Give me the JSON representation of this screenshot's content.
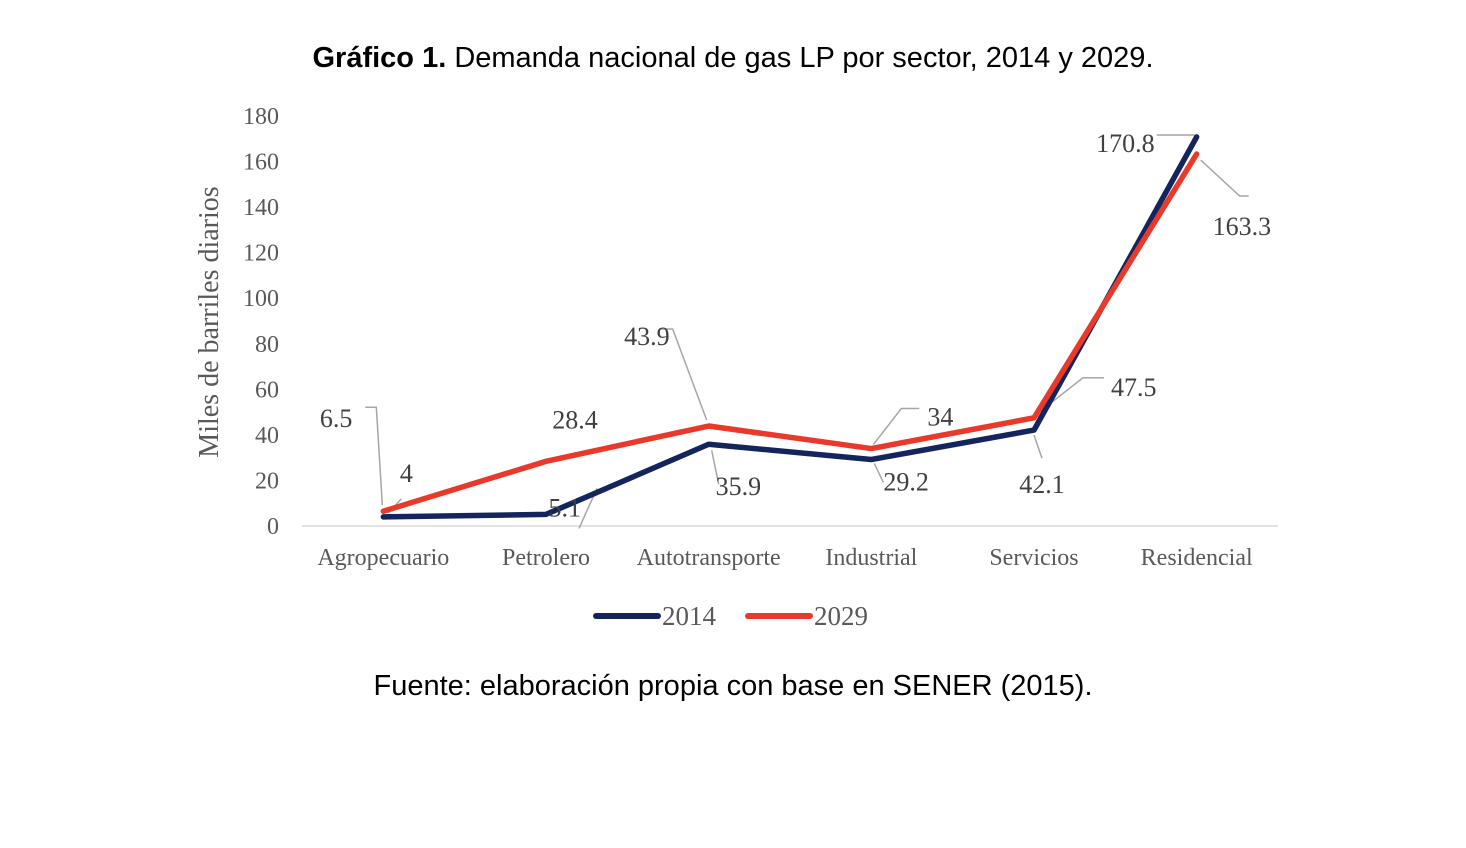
{
  "title_bold": "Gráfico 1.",
  "title_rest": " Demanda nacional de gas LP por sector, 2014 y 2029.",
  "source": "Fuente: elaboración propia con base en SENER (2015).",
  "chart_data": {
    "type": "line",
    "title": "Gráfico 1. Demanda nacional de gas LP por sector, 2014 y 2029.",
    "xlabel": "",
    "ylabel": "Miles de barriles diarios",
    "ylim": [
      0,
      180
    ],
    "yticks": [
      "0",
      "20",
      "40",
      "60",
      "80",
      "100",
      "120",
      "140",
      "160",
      "180"
    ],
    "grid": false,
    "legend_position": "bottom",
    "categories": [
      "Agropecuario",
      "Petrolero",
      "Autotransporte",
      "Industrial",
      "Servicios",
      "Residencial"
    ],
    "series": [
      {
        "name": "2014",
        "color": "#14245c",
        "values": [
          4,
          5.1,
          35.9,
          29.2,
          42.1,
          170.8
        ],
        "labels": [
          "4",
          "5.1",
          "35.9",
          "29.2",
          "42.1",
          "170.8"
        ]
      },
      {
        "name": "2029",
        "color": "#e8392a",
        "values": [
          6.5,
          28.4,
          43.9,
          34,
          47.5,
          163.3
        ],
        "labels": [
          "6.5",
          "28.4",
          "43.9",
          "34",
          "47.5",
          "163.3"
        ]
      }
    ]
  }
}
